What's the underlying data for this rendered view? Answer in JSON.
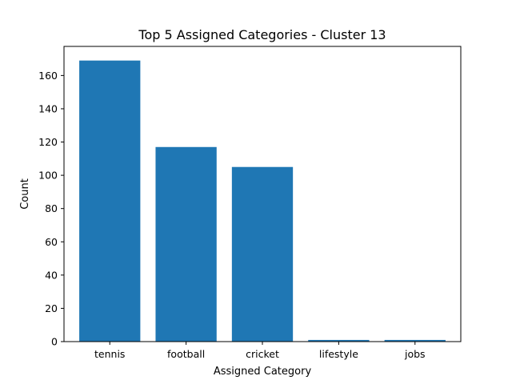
{
  "chart_data": {
    "type": "bar",
    "title": "Top 5 Assigned Categories - Cluster 13",
    "xlabel": "Assigned Category",
    "ylabel": "Count",
    "categories": [
      "tennis",
      "football",
      "cricket",
      "lifestyle",
      "jobs"
    ],
    "values": [
      169,
      117,
      105,
      1,
      1
    ],
    "ylim": [
      0,
      177.5
    ],
    "yticks": [
      0,
      20,
      40,
      60,
      80,
      100,
      120,
      140,
      160
    ],
    "bar_color": "#1f77b4",
    "grid": false,
    "legend": "none"
  }
}
